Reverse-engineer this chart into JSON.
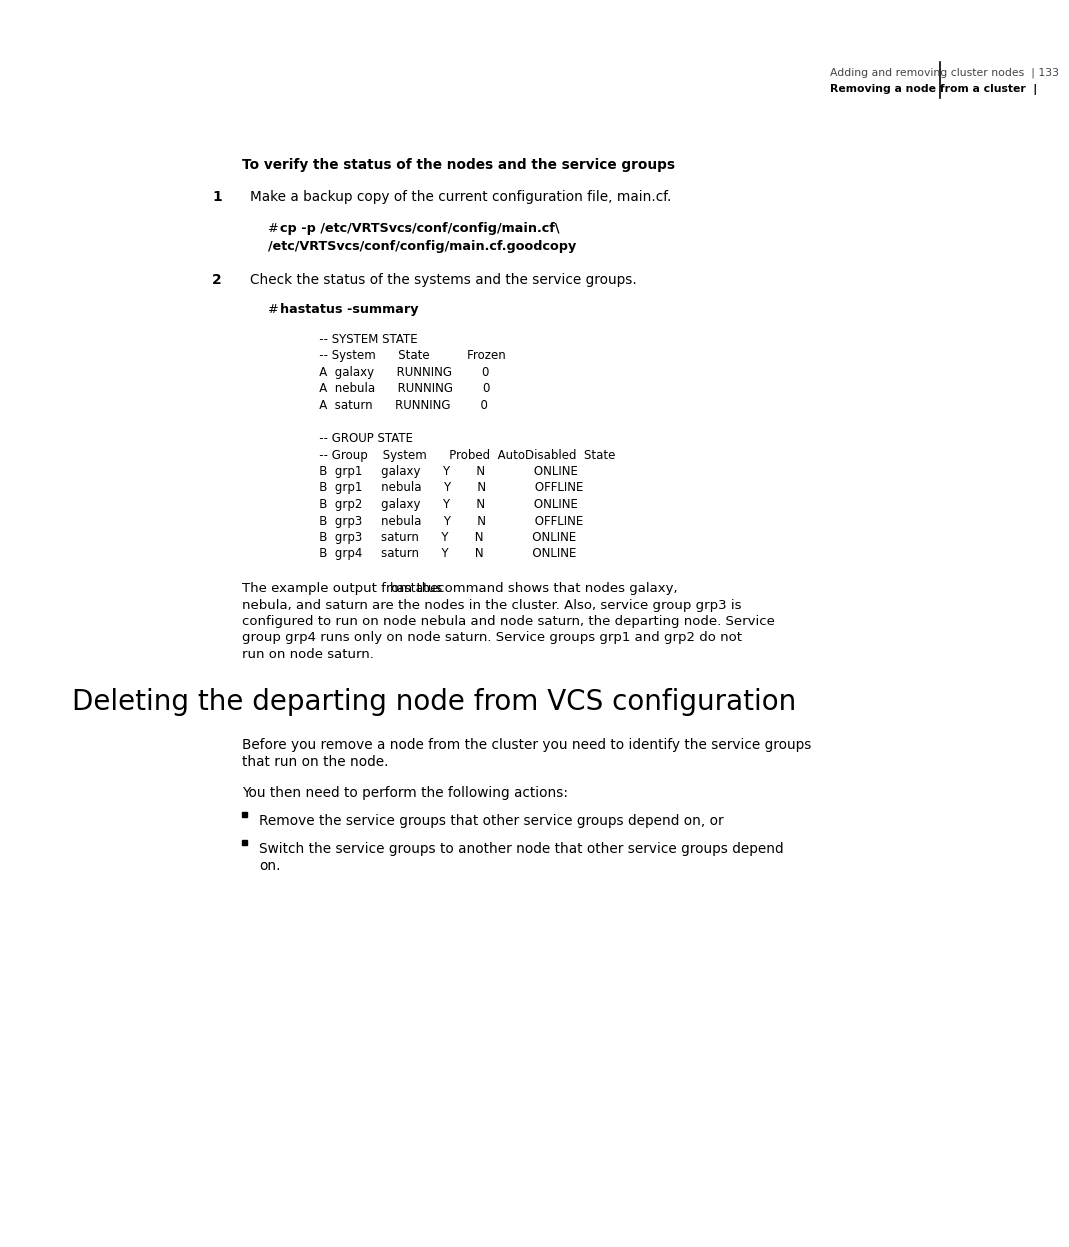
{
  "bg_color": "#ffffff",
  "header_right_line1": "Adding and removing cluster nodes  | 133",
  "header_right_line2": "Removing a node from a cluster  |",
  "section_heading": "To verify the status of the nodes and the service groups",
  "step1_num": "1",
  "step1_text": "Make a backup copy of the current configuration file, main.cf.",
  "step1_code_line1_hash": "# ",
  "step1_code_line1_bold": "cp -p /etc/VRTSvcs/conf/config/main.cf\\",
  "step1_code_line2_bold": "/etc/VRTSvcs/conf/config/main.cf.goodcopy",
  "step2_num": "2",
  "step2_text": "Check the status of the systems and the service groups.",
  "step2_code_hash": "# ",
  "step2_code_bold": "hastatus -summary",
  "terminal_lines": [
    "   -- SYSTEM STATE",
    "   -- System      State          Frozen",
    "   A  galaxy      RUNNING        0",
    "   A  nebula      RUNNING        0",
    "   A  saturn      RUNNING        0",
    "",
    "   -- GROUP STATE",
    "   -- Group    System      Probed  AutoDisabled  State",
    "   B  grp1     galaxy      Y       N             ONLINE",
    "   B  grp1     nebula      Y       N             OFFLINE",
    "   B  grp2     galaxy      Y       N             ONLINE",
    "   B  grp3     nebula      Y       N             OFFLINE",
    "   B  grp3     saturn      Y       N             ONLINE",
    "   B  grp4     saturn      Y       N             ONLINE"
  ],
  "para1_before_inline": "The example output from the ",
  "para1_inline": "hastatus",
  "para1_after_inline": " command shows that nodes galaxy,",
  "para1_rest": [
    "nebula, and saturn are the nodes in the cluster. Also, service group grp3 is",
    "configured to run on node nebula and node saturn, the departing node. Service",
    "group grp4 runs only on node saturn. Service groups grp1 and grp2 do not",
    "run on node saturn."
  ],
  "section2_heading": "Deleting the departing node from VCS configuration",
  "para2_lines": [
    "Before you remove a node from the cluster you need to identify the service groups",
    "that run on the node."
  ],
  "para3": "You then need to perform the following actions:",
  "bullet1": "Remove the service groups that other service groups depend on, or",
  "bullet2_lines": [
    "Switch the service groups to another node that other service groups depend",
    "on."
  ]
}
